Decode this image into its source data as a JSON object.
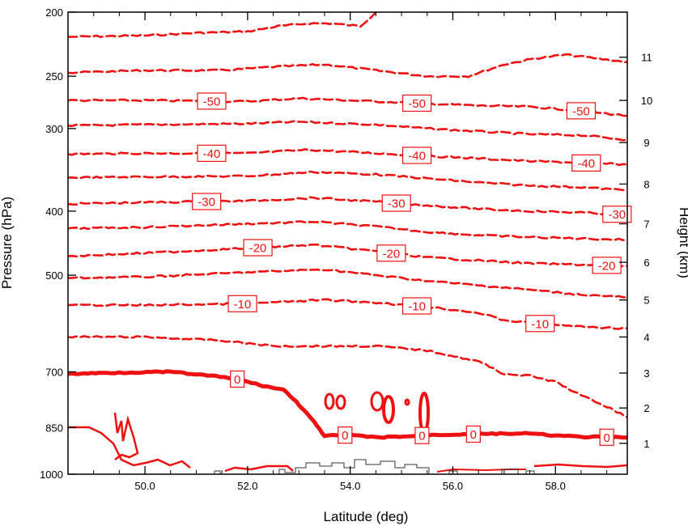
{
  "chart_data": {
    "type": "contour",
    "title": "",
    "xlabel": "Latitude (deg)",
    "ylabel_left": "Pressure (hPa)",
    "ylabel_right": "Height (km)",
    "xlim": [
      48.5,
      59.4
    ],
    "xticks": [
      {
        "value": 50.0,
        "label": "50.0"
      },
      {
        "value": 52.0,
        "label": "52.0"
      },
      {
        "value": 54.0,
        "label": "54.0"
      },
      {
        "value": 56.0,
        "label": "56.0"
      },
      {
        "value": 58.0,
        "label": "58.0"
      }
    ],
    "pressure_scale": "log",
    "ylim_pressure": [
      1000,
      200
    ],
    "pressure_ticks": [
      {
        "value": 200,
        "label": "200"
      },
      {
        "value": 250,
        "label": "250"
      },
      {
        "value": 300,
        "label": "300"
      },
      {
        "value": 400,
        "label": "400"
      },
      {
        "value": 500,
        "label": "500"
      },
      {
        "value": 700,
        "label": "700"
      },
      {
        "value": 850,
        "label": "850"
      },
      {
        "value": 1000,
        "label": "1000"
      }
    ],
    "height_ticks": [
      {
        "value": 1,
        "label": "1",
        "pressure": 898
      },
      {
        "value": 2,
        "label": "2",
        "pressure": 794
      },
      {
        "value": 3,
        "label": "3",
        "pressure": 703
      },
      {
        "value": 4,
        "label": "4",
        "pressure": 620
      },
      {
        "value": 5,
        "label": "5",
        "pressure": 545
      },
      {
        "value": 6,
        "label": "6",
        "pressure": 478
      },
      {
        "value": 7,
        "label": "7",
        "pressure": 418
      },
      {
        "value": 8,
        "label": "8",
        "pressure": 364
      },
      {
        "value": 9,
        "label": "9",
        "pressure": 315
      },
      {
        "value": 10,
        "label": "10",
        "pressure": 272
      },
      {
        "value": 11,
        "label": "11",
        "pressure": 234
      }
    ],
    "contour_color": "#ee1111",
    "terrain_color": "#333333",
    "contours": [
      {
        "level": -65,
        "style": "dashed",
        "points": [
          [
            48.5,
            218
          ],
          [
            50.0,
            217
          ],
          [
            51.0,
            215
          ],
          [
            52.0,
            214
          ],
          [
            52.6,
            210
          ],
          [
            53.2,
            208
          ],
          [
            53.6,
            208
          ],
          [
            54.2,
            210
          ],
          [
            54.5,
            200
          ]
        ]
      },
      {
        "level": -55,
        "style": "dashed",
        "points": [
          [
            48.5,
            247
          ],
          [
            50.0,
            245
          ],
          [
            51.5,
            245
          ],
          [
            52.5,
            242
          ],
          [
            53.5,
            240
          ],
          [
            54.5,
            245
          ],
          [
            55.5,
            250
          ],
          [
            56.3,
            250
          ],
          [
            57.0,
            240
          ],
          [
            57.6,
            235
          ],
          [
            58.2,
            232
          ],
          [
            59.4,
            238
          ]
        ]
      },
      {
        "level": -50,
        "style": "dashed",
        "points": [
          [
            48.5,
            272
          ],
          [
            50.0,
            272
          ],
          [
            52.0,
            273
          ],
          [
            53.0,
            270
          ],
          [
            54.0,
            272
          ],
          [
            55.5,
            275
          ],
          [
            56.5,
            277
          ],
          [
            57.5,
            278
          ],
          [
            58.5,
            282
          ],
          [
            59.4,
            287
          ]
        ],
        "labels": [
          {
            "x": 51.3,
            "text": "-50"
          },
          {
            "x": 55.3,
            "text": "-50"
          },
          {
            "x": 58.5,
            "text": "-50"
          }
        ]
      },
      {
        "level": -45,
        "style": "dashed",
        "points": [
          [
            48.5,
            297
          ],
          [
            50.0,
            296
          ],
          [
            52.0,
            295
          ],
          [
            53.0,
            293
          ],
          [
            54.5,
            296
          ],
          [
            55.5,
            300
          ],
          [
            56.5,
            303
          ],
          [
            57.5,
            306
          ],
          [
            58.5,
            307
          ],
          [
            59.4,
            312
          ]
        ]
      },
      {
        "level": -40,
        "style": "dashed",
        "points": [
          [
            48.5,
            328
          ],
          [
            50.0,
            327
          ],
          [
            52.0,
            327
          ],
          [
            53.2,
            323
          ],
          [
            54.5,
            327
          ],
          [
            55.5,
            330
          ],
          [
            56.5,
            333
          ],
          [
            57.5,
            336
          ],
          [
            58.5,
            338
          ],
          [
            59.4,
            340
          ]
        ],
        "labels": [
          {
            "x": 51.3,
            "text": "-40"
          },
          {
            "x": 55.3,
            "text": "-40"
          },
          {
            "x": 58.6,
            "text": "-40"
          }
        ]
      },
      {
        "level": -35,
        "style": "dashed",
        "points": [
          [
            48.5,
            356
          ],
          [
            50.0,
            355
          ],
          [
            52.0,
            354
          ],
          [
            53.3,
            349
          ],
          [
            54.5,
            352
          ],
          [
            55.5,
            357
          ],
          [
            56.5,
            362
          ],
          [
            57.5,
            366
          ],
          [
            58.5,
            368
          ],
          [
            59.4,
            372
          ]
        ]
      },
      {
        "level": -30,
        "style": "dashed",
        "points": [
          [
            48.5,
            390
          ],
          [
            50.0,
            388
          ],
          [
            52.0,
            386
          ],
          [
            53.3,
            382
          ],
          [
            54.5,
            387
          ],
          [
            55.5,
            392
          ],
          [
            56.5,
            397
          ],
          [
            57.5,
            400
          ],
          [
            58.5,
            402
          ],
          [
            59.4,
            405
          ]
        ],
        "labels": [
          {
            "x": 51.2,
            "text": "-30"
          },
          {
            "x": 54.9,
            "text": "-30"
          },
          {
            "x": 59.2,
            "text": "-30"
          }
        ]
      },
      {
        "level": -25,
        "style": "dashed",
        "points": [
          [
            48.5,
            425
          ],
          [
            50.0,
            423
          ],
          [
            52.0,
            418
          ],
          [
            53.3,
            415
          ],
          [
            54.5,
            422
          ],
          [
            55.5,
            430
          ],
          [
            56.5,
            435
          ],
          [
            57.5,
            438
          ],
          [
            58.5,
            440
          ],
          [
            59.4,
            442
          ]
        ]
      },
      {
        "level": -20,
        "style": "dashed",
        "points": [
          [
            48.5,
            468
          ],
          [
            50.0,
            463
          ],
          [
            52.0,
            455
          ],
          [
            53.3,
            450
          ],
          [
            54.5,
            460
          ],
          [
            55.5,
            470
          ],
          [
            56.5,
            475
          ],
          [
            57.5,
            480
          ],
          [
            58.5,
            482
          ],
          [
            59.4,
            484
          ]
        ],
        "labels": [
          {
            "x": 52.2,
            "text": "-20"
          },
          {
            "x": 54.8,
            "text": "-20"
          },
          {
            "x": 59.0,
            "text": "-20"
          }
        ]
      },
      {
        "level": -15,
        "style": "dashed",
        "points": [
          [
            48.5,
            505
          ],
          [
            50.0,
            503
          ],
          [
            52.0,
            495
          ],
          [
            53.5,
            490
          ],
          [
            54.5,
            500
          ],
          [
            55.5,
            510
          ],
          [
            56.5,
            518
          ],
          [
            57.5,
            526
          ],
          [
            58.5,
            535
          ],
          [
            59.4,
            540
          ]
        ]
      },
      {
        "level": -10,
        "style": "dashed",
        "points": [
          [
            48.5,
            555
          ],
          [
            50.0,
            555
          ],
          [
            52.0,
            552
          ],
          [
            53.5,
            545
          ],
          [
            54.5,
            550
          ],
          [
            55.5,
            558
          ],
          [
            56.5,
            570
          ],
          [
            57.0,
            585
          ],
          [
            57.5,
            590
          ],
          [
            58.5,
            598
          ],
          [
            59.4,
            602
          ]
        ],
        "labels": [
          {
            "x": 51.9,
            "text": "-10"
          },
          {
            "x": 55.3,
            "text": "-10"
          },
          {
            "x": 57.7,
            "text": "-10"
          }
        ]
      },
      {
        "level": -5,
        "style": "dashed",
        "points": [
          [
            48.5,
            620
          ],
          [
            50.0,
            620
          ],
          [
            51.5,
            628
          ],
          [
            52.5,
            640
          ],
          [
            53.5,
            640
          ],
          [
            54.5,
            640
          ],
          [
            55.5,
            650
          ],
          [
            56.5,
            675
          ],
          [
            57.0,
            705
          ],
          [
            57.5,
            710
          ],
          [
            58.0,
            725
          ],
          [
            58.5,
            760
          ],
          [
            59.0,
            790
          ],
          [
            59.4,
            820
          ]
        ]
      },
      {
        "level": 0,
        "style": "bold",
        "points": [
          [
            48.5,
            705
          ],
          [
            49.5,
            702
          ],
          [
            50.5,
            700
          ],
          [
            51.3,
            710
          ],
          [
            51.8,
            718
          ],
          [
            52.3,
            735
          ],
          [
            52.7,
            745
          ],
          [
            52.9,
            770
          ],
          [
            53.1,
            800
          ],
          [
            53.3,
            835
          ],
          [
            53.5,
            875
          ],
          [
            54.0,
            872
          ],
          [
            54.5,
            880
          ],
          [
            54.8,
            878
          ],
          [
            55.2,
            876
          ],
          [
            55.6,
            872
          ],
          [
            56.3,
            870
          ],
          [
            57.0,
            868
          ],
          [
            57.5,
            868
          ],
          [
            58.0,
            874
          ],
          [
            58.5,
            878
          ],
          [
            59.4,
            880
          ]
        ],
        "labels": [
          {
            "x": 51.8,
            "text": "0"
          },
          {
            "x": 53.9,
            "text": "0"
          },
          {
            "x": 55.4,
            "text": "0"
          },
          {
            "x": 56.4,
            "text": "0"
          },
          {
            "x": 59.0,
            "text": "0"
          }
        ]
      }
    ]
  }
}
